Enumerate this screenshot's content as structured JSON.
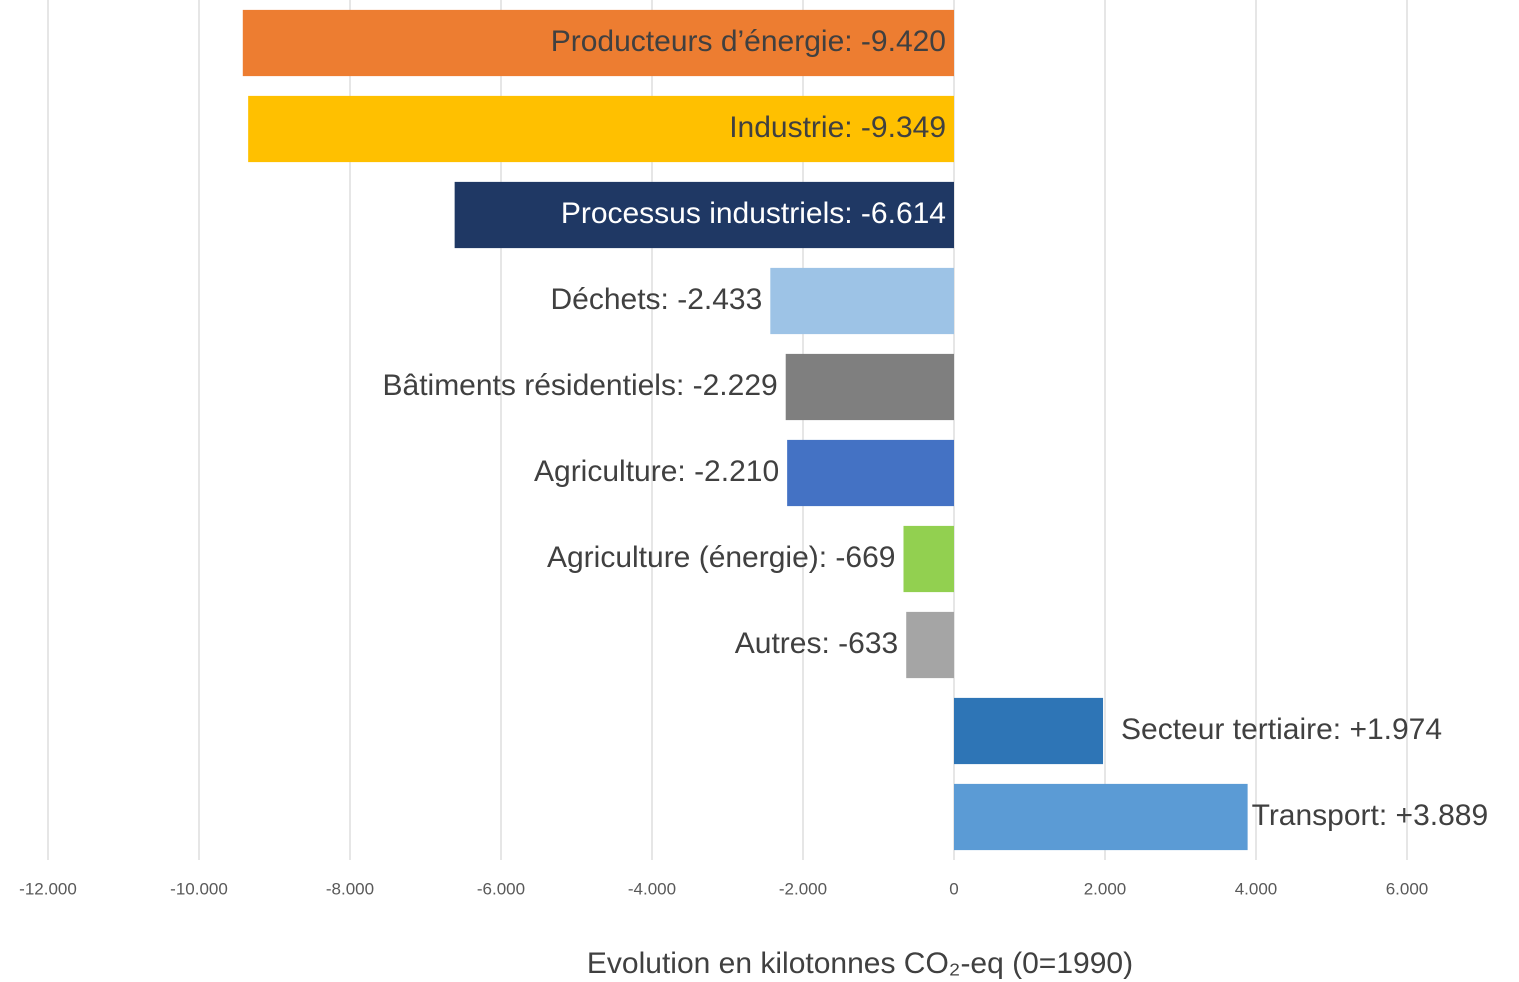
{
  "chart_data": {
    "type": "bar",
    "orientation": "horizontal",
    "values": [
      -9420,
      -9349,
      -6614,
      -2433,
      -2229,
      -2210,
      -669,
      -633,
      1974,
      3889
    ],
    "value_labels": [
      "Producteurs d’énergie: -9.420",
      "Industrie: -9.349",
      "Processus industriels: -6.614",
      "Déchets: -2.433",
      "Bâtiments résidentiels: -2.229",
      "Agriculture: -2.210",
      "Agriculture (énergie): -669",
      "Autres: -633",
      "Secteur tertiaire: +1.974",
      "Transport: +3.889"
    ],
    "colors": [
      "#ed7d31",
      "#ffc000",
      "#1f3864",
      "#9dc3e6",
      "#7f7f7f",
      "#4472c4",
      "#92d050",
      "#a5a5a5",
      "#2e75b6",
      "#5b9bd5"
    ],
    "xlim": [
      -12000,
      6000
    ],
    "xticks": [
      {
        "value": -12000,
        "label": "-12.000"
      },
      {
        "value": -10000,
        "label": "-10.000"
      },
      {
        "value": -8000,
        "label": "-8.000"
      },
      {
        "value": -6000,
        "label": "-6.000"
      },
      {
        "value": -4000,
        "label": "-4.000"
      },
      {
        "value": -2000,
        "label": "-2.000"
      },
      0,
      {
        "value": 2000,
        "label": "2.000"
      },
      {
        "value": 4000,
        "label": "4.000"
      },
      {
        "value": 6000,
        "label": "6.000"
      }
    ],
    "x_label": "Evolution en kilotonnes CO₂-eq (0=1990)",
    "grid": true
  }
}
